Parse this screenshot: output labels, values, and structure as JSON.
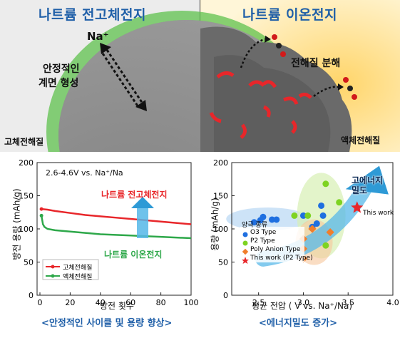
{
  "top_left": {
    "title": "나트륨 전고체전지",
    "ion": "Na⁺",
    "interface_label_line1": "안정적인",
    "interface_label_line2": "계면 형성",
    "electrolyte": "고체전해질"
  },
  "top_right": {
    "title": "나트륨 이온전지",
    "decomp": "전해질 분해",
    "electrolyte": "액체전해질"
  },
  "cycle_chart": {
    "condition": "2.6-4.6V  vs. Na⁺/Na",
    "ylabel": "방전 용량 (mAh/g)",
    "xlabel": "방전 횟수",
    "yticks": [
      "0",
      "50",
      "100",
      "150",
      "200"
    ],
    "xticks": [
      "0",
      "20",
      "40",
      "60",
      "80",
      "100"
    ],
    "series_label_top": "나트륨 전고체전지",
    "series_label_bottom": "나트륨 이온전지",
    "legend": [
      "고체전해질",
      "액체전해질"
    ],
    "caption": "<안정적인 사이클 및 용량 향상>",
    "colors": {
      "solid": "#e8262a",
      "liquid": "#2ea84a"
    }
  },
  "chart_data": [
    {
      "type": "line",
      "xlabel": "방전 횟수",
      "ylabel": "방전 용량 (mAh/g)",
      "xlim": [
        0,
        100
      ],
      "ylim": [
        0,
        200
      ],
      "series": [
        {
          "name": "고체전해질",
          "x": [
            1,
            5,
            10,
            20,
            30,
            40,
            50,
            60,
            70,
            80,
            90,
            100
          ],
          "values": [
            130,
            129,
            127,
            124,
            121,
            119,
            117,
            115,
            113,
            111,
            109,
            107
          ]
        },
        {
          "name": "액체전해질",
          "x": [
            1,
            2,
            3,
            5,
            10,
            20,
            30,
            40,
            50,
            60,
            70,
            80,
            90,
            100
          ],
          "values": [
            120,
            107,
            103,
            100,
            98,
            96,
            94,
            92,
            91,
            90,
            89,
            88,
            87,
            86
          ]
        }
      ]
    },
    {
      "type": "scatter",
      "xlabel": "평균 전압 ( V vs. Na⁺/Na)",
      "ylabel": "용량 (mAh/g)",
      "xlim": [
        2.2,
        4.0
      ],
      "ylim": [
        0,
        200
      ],
      "series": [
        {
          "name": "O3 Type",
          "color": "#1f6fe0",
          "x": [
            2.45,
            2.52,
            2.55,
            2.65,
            2.7,
            3.0,
            3.1,
            3.15,
            3.2,
            3.22
          ],
          "values": [
            110,
            113,
            118,
            114,
            114,
            120,
            103,
            108,
            135,
            120
          ]
        },
        {
          "name": "P2 Type",
          "color": "#7ed321",
          "x": [
            2.9,
            3.05,
            3.25,
            3.25,
            3.4
          ],
          "values": [
            120,
            120,
            168,
            75,
            140
          ]
        },
        {
          "name": "Poly Anion Type",
          "color": "#f07e2c",
          "x": [
            3.0,
            3.0,
            3.0,
            3.1,
            3.3
          ],
          "values": [
            55,
            70,
            85,
            100,
            95
          ]
        },
        {
          "name": "This work (P2 Type)",
          "color": "#e8262a",
          "x": [
            3.6
          ],
          "values": [
            132
          ]
        }
      ]
    }
  ],
  "density_chart": {
    "ylabel": "용량 (mAh/g)",
    "xlabel": "평균 전압 ( V vs. Na⁺/Na)",
    "yticks": [
      "0",
      "50",
      "100",
      "150",
      "200"
    ],
    "xticks": [
      "2.5",
      "3.0",
      "3.5",
      "4.0"
    ],
    "arrow_label": "고에너지 밀도",
    "this_work": "This work",
    "legend_title": "양극 종류",
    "legend": [
      "O3 Type",
      "P2 Type",
      "Poly Anion Type",
      "This work (P2 Type)"
    ],
    "caption": "<에너지밀도 증가>"
  }
}
